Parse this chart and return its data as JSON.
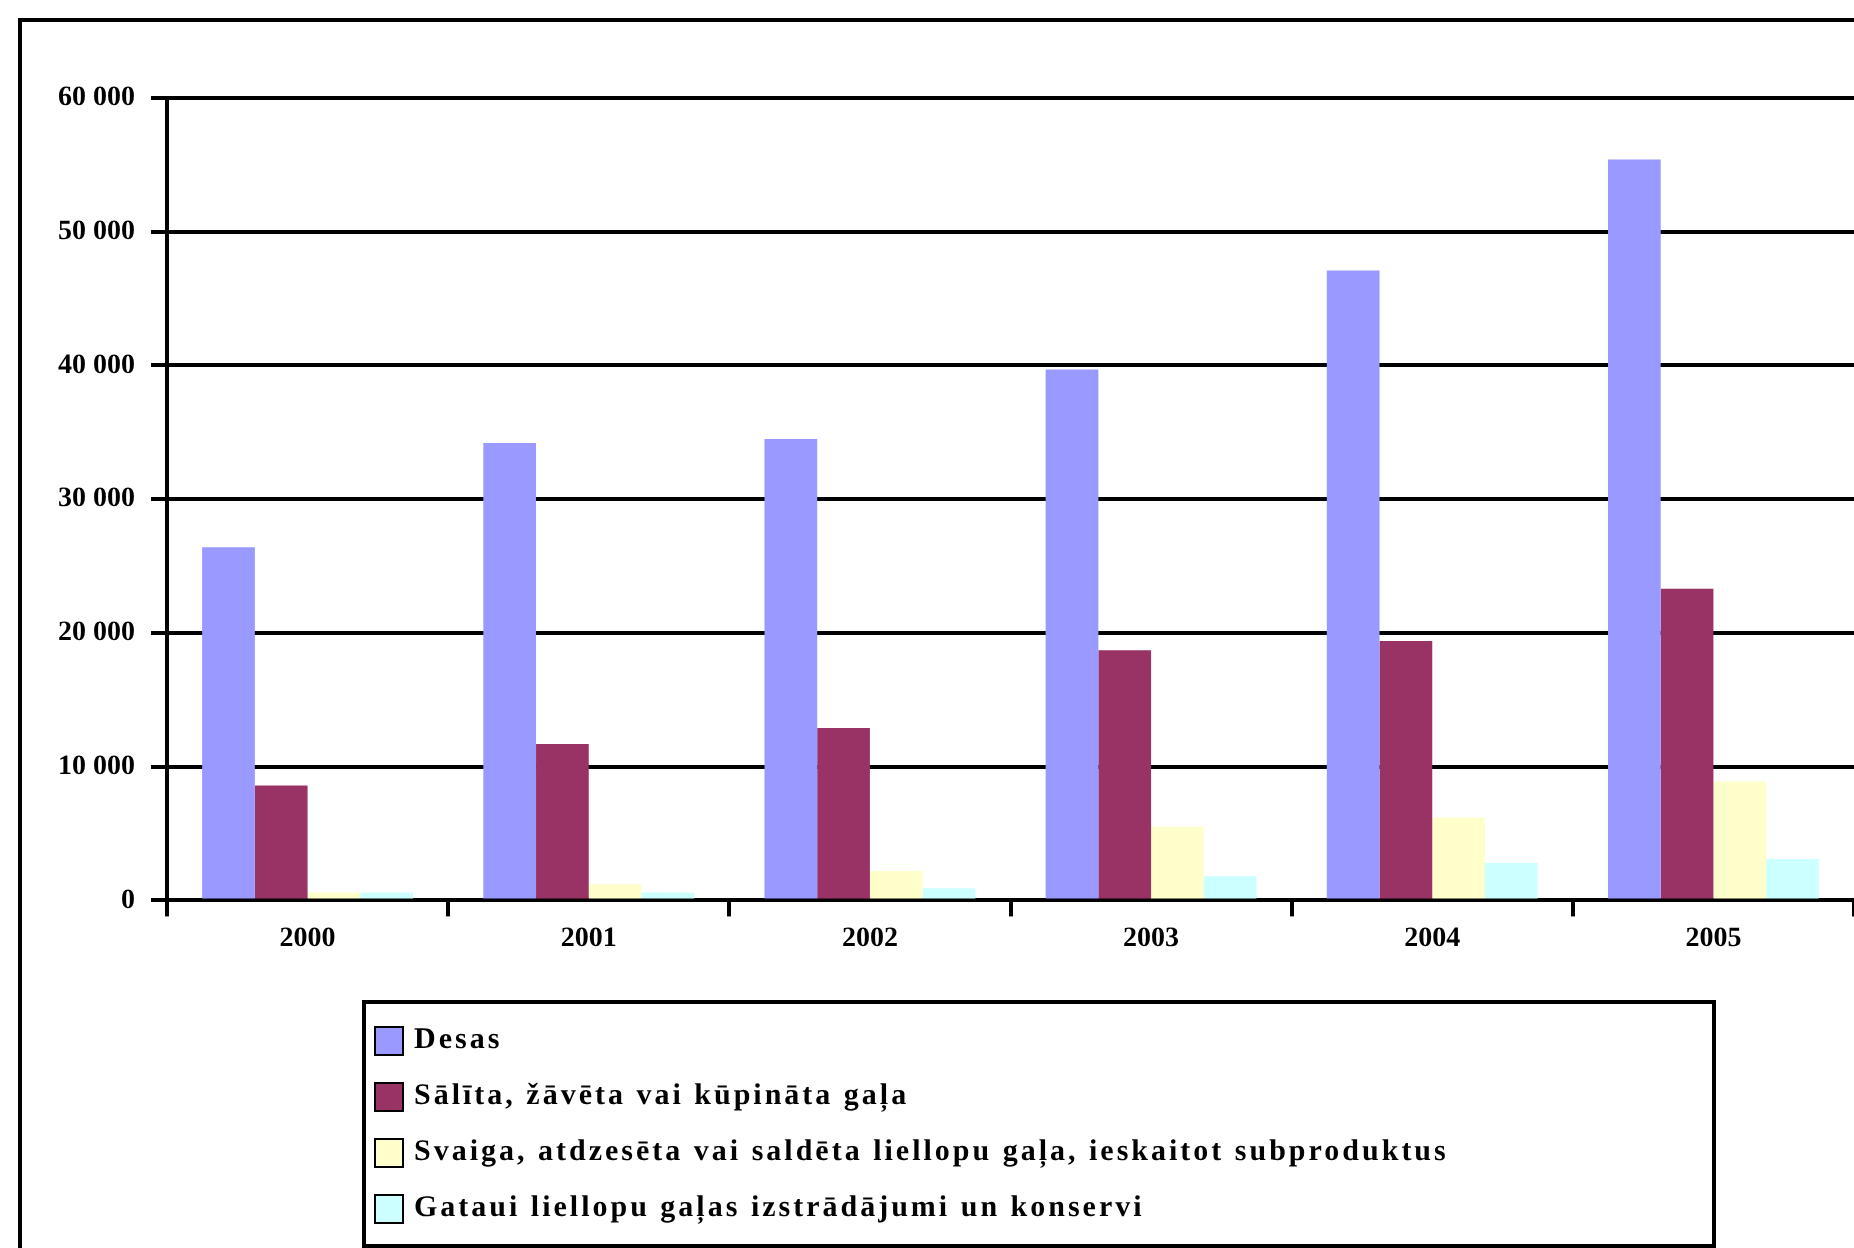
{
  "chart_data": {
    "type": "bar",
    "categories": [
      "2000",
      "2001",
      "2002",
      "2003",
      "2004",
      "2005"
    ],
    "series": [
      {
        "name": "Desas",
        "color": "#9999ff",
        "values": [
          26400,
          34200,
          34500,
          39700,
          47100,
          55400
        ]
      },
      {
        "name": "Sālīta, žāvēta vai kūpināta gaļa",
        "color": "#993366",
        "values": [
          8600,
          11700,
          12900,
          18700,
          19400,
          23300
        ]
      },
      {
        "name": "Svaiga, atdzesēta vai saldēta liellopu gaļa, ieskaitot subproduktus",
        "color": "#ffffcc",
        "values": [
          600,
          1200,
          2200,
          5500,
          6200,
          8900
        ]
      },
      {
        "name": "Gataui liellopu gaļas izstrādājumi un konservi",
        "color": "#ccffff",
        "values": [
          600,
          600,
          900,
          1800,
          2800,
          3100
        ]
      }
    ],
    "ylim": [
      0,
      60000
    ],
    "yticks": [
      {
        "value": 0,
        "label": "0"
      },
      {
        "value": 10000,
        "label": "10 000"
      },
      {
        "value": 20000,
        "label": "20 000"
      },
      {
        "value": 30000,
        "label": "30 000"
      },
      {
        "value": 40000,
        "label": "40 000"
      },
      {
        "value": 50000,
        "label": "50 000"
      },
      {
        "value": 60000,
        "label": "60 000"
      }
    ],
    "grid": "y",
    "legend": "bottom"
  }
}
